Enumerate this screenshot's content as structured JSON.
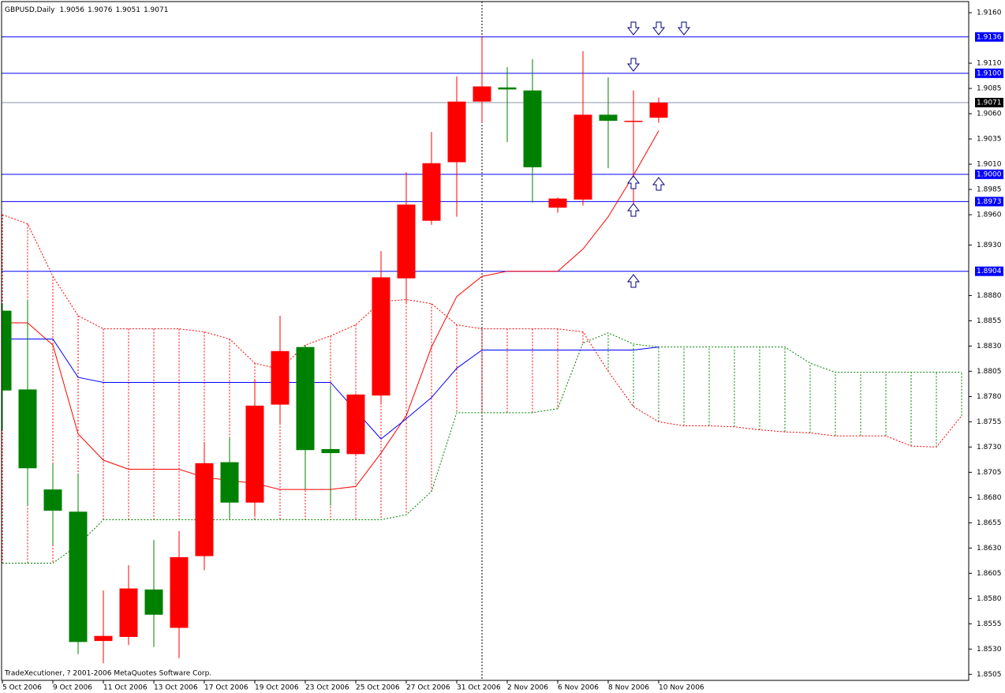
{
  "chart_data": {
    "type": "candlestick",
    "symbol": "GBPUSD,Daily",
    "footer": "TradeXecutioner, ? 2001-2006 MetaQuotes Software Corp.",
    "categories": [
      "5 Oct 2006",
      null,
      "9 Oct 2006",
      null,
      "11 Oct 2006",
      null,
      "13 Oct 2006",
      null,
      "17 Oct 2006",
      null,
      "19 Oct 2006",
      null,
      "23 Oct 2006",
      null,
      "25 Oct 2006",
      null,
      "27 Oct 2006",
      null,
      "31 Oct 2006",
      null,
      "2 Nov 2006",
      null,
      "6 Nov 2006",
      null,
      "8 Nov 2006",
      null,
      "10 Nov 2006",
      null,
      null,
      null,
      null,
      null,
      null,
      null,
      null,
      null,
      null,
      null,
      null
    ],
    "open": [
      1.8865,
      1.8787,
      1.8688,
      1.8666,
      1.8538,
      1.8542,
      1.8589,
      1.8551,
      1.8622,
      1.8715,
      1.8675,
      1.8772,
      1.8829,
      1.8728,
      1.8723,
      1.8781,
      1.8897,
      1.8954,
      1.9012,
      1.9072,
      1.9086,
      1.9083,
      1.8967,
      1.8975,
      1.9059,
      1.9052,
      1.9056,
      null,
      null,
      null,
      null,
      null,
      null,
      null,
      null,
      null,
      null,
      null,
      null
    ],
    "high": [
      1.8872,
      1.8876,
      1.8713,
      1.8704,
      1.8588,
      1.8613,
      1.8638,
      1.8647,
      1.8735,
      1.8739,
      1.8797,
      1.886,
      1.8831,
      1.8791,
      1.8783,
      1.8924,
      1.9002,
      1.9042,
      1.9097,
      1.9137,
      1.9106,
      1.9114,
      1.8977,
      1.9122,
      1.9096,
      1.9083,
      1.9076,
      null,
      null,
      null,
      null,
      null,
      null,
      null,
      null,
      null,
      null,
      null,
      null
    ],
    "low": [
      1.8747,
      1.8672,
      1.8633,
      1.8525,
      1.8516,
      1.8534,
      1.8532,
      1.8521,
      1.8608,
      1.8659,
      1.8661,
      1.8752,
      1.8688,
      1.8672,
      1.8721,
      1.8772,
      1.8872,
      1.895,
      1.8958,
      1.9051,
      1.9032,
      1.8972,
      1.8962,
      1.8969,
      1.9006,
      1.8968,
      1.9051,
      null,
      null,
      null,
      null,
      null,
      null,
      null,
      null,
      null,
      null,
      null,
      null
    ],
    "close": [
      1.8786,
      1.8709,
      1.8667,
      1.8537,
      1.8543,
      1.859,
      1.8564,
      1.8621,
      1.8714,
      1.8675,
      1.8771,
      1.8825,
      1.8727,
      1.8724,
      1.8782,
      1.8898,
      1.897,
      1.9011,
      1.9072,
      1.9087,
      1.9084,
      1.9007,
      1.8976,
      1.9059,
      1.9053,
      1.9053,
      1.9071,
      null,
      null,
      null,
      null,
      null,
      null,
      null,
      null,
      null,
      null,
      null,
      null
    ],
    "up_color": "#ff0000",
    "down_color": "#008000",
    "tenkan": {
      "color": "#ff0000",
      "style": "solid",
      "values": [
        1.8853,
        1.8853,
        1.8831,
        1.8743,
        1.8717,
        1.8708,
        1.8708,
        1.8708,
        1.87,
        1.8697,
        1.8694,
        1.8688,
        1.8688,
        1.8688,
        1.8691,
        1.8724,
        1.8761,
        1.8829,
        1.8879,
        1.8899,
        1.8904,
        1.8904,
        1.8904,
        1.8926,
        1.8958,
        1.8999,
        1.9043,
        null,
        null,
        null,
        null,
        null,
        null,
        null,
        null,
        null,
        null,
        null,
        null
      ]
    },
    "kijun": {
      "color": "#0000ff",
      "style": "solid",
      "values": [
        1.8837,
        1.8837,
        1.8837,
        1.8799,
        1.8794,
        1.8794,
        1.8794,
        1.8794,
        1.8794,
        1.8794,
        1.8794,
        1.8794,
        1.8794,
        1.8794,
        1.8766,
        1.8738,
        1.8758,
        1.8779,
        1.8808,
        1.8826,
        1.8826,
        1.8826,
        1.8826,
        1.8826,
        1.8826,
        1.8826,
        1.8829,
        null,
        null,
        null,
        null,
        null,
        null,
        null,
        null,
        null,
        null,
        null,
        null
      ]
    },
    "span_a": {
      "color": "#ff0000",
      "style": "dotted",
      "values": [
        1.896,
        1.8951,
        1.8899,
        1.886,
        1.8847,
        1.8847,
        1.8847,
        1.8847,
        1.8844,
        1.8837,
        1.8813,
        1.8807,
        1.8831,
        1.884,
        1.8851,
        1.8874,
        1.8876,
        1.8872,
        1.8851,
        1.8847,
        1.8847,
        1.8847,
        1.8847,
        1.8844,
        1.8805,
        1.877,
        1.8755,
        1.8751,
        1.8751,
        1.875,
        1.8747,
        1.8745,
        1.8744,
        1.8741,
        1.8741,
        1.8741,
        1.8731,
        1.873,
        1.8761
      ]
    },
    "span_b": {
      "color": "#008000",
      "style": "dotted",
      "values": [
        1.8615,
        1.8615,
        1.8615,
        1.8633,
        1.8658,
        1.8658,
        1.8658,
        1.8658,
        1.8658,
        1.8658,
        1.8658,
        1.8658,
        1.8658,
        1.8658,
        1.8658,
        1.8658,
        1.8663,
        1.8686,
        1.8764,
        1.8764,
        1.8764,
        1.8764,
        1.8768,
        1.8833,
        1.8843,
        1.8832,
        1.8829,
        1.8829,
        1.8829,
        1.8829,
        1.8829,
        1.8829,
        1.8813,
        1.8804,
        1.8804,
        1.8804,
        1.8804,
        1.8804,
        1.8804
      ]
    },
    "levels": [
      {
        "value": 1.9136,
        "label": "1.9136"
      },
      {
        "value": 1.91,
        "label": "1.9100"
      },
      {
        "value": 1.9,
        "label": "1.9000"
      },
      {
        "value": 1.8973,
        "label": "1.8973"
      },
      {
        "value": 1.8904,
        "label": "1.8904"
      }
    ],
    "level_color": "#0000ff",
    "bid": 1.9071,
    "bid_color": "#8c96a8",
    "ylim": [
      1.8499,
      1.9171
    ],
    "yticks": [
      {
        "value": 1.916,
        "label": "1.9160"
      },
      {
        "value": 1.911,
        "label": "1.9110"
      },
      1.9085,
      {
        "value": 1.906,
        "label": "1.9060"
      },
      1.9035,
      {
        "value": 1.901,
        "label": "1.9010"
      },
      1.8985,
      {
        "value": 1.896,
        "label": "1.8960"
      },
      {
        "value": 1.893,
        "label": "1.8930"
      },
      {
        "value": 1.888,
        "label": "1.8880"
      },
      1.8855,
      {
        "value": 1.883,
        "label": "1.8830"
      },
      1.8805,
      {
        "value": 1.878,
        "label": "1.8780"
      },
      1.8755,
      {
        "value": 1.873,
        "label": "1.8730"
      },
      1.8705,
      {
        "value": 1.868,
        "label": "1.8680"
      },
      1.8655,
      {
        "value": 1.863,
        "label": "1.8630"
      },
      1.8605,
      {
        "value": 1.858,
        "label": "1.8580"
      },
      1.8555,
      {
        "value": 1.853,
        "label": "1.8530"
      },
      1.8505
    ]
  }
}
